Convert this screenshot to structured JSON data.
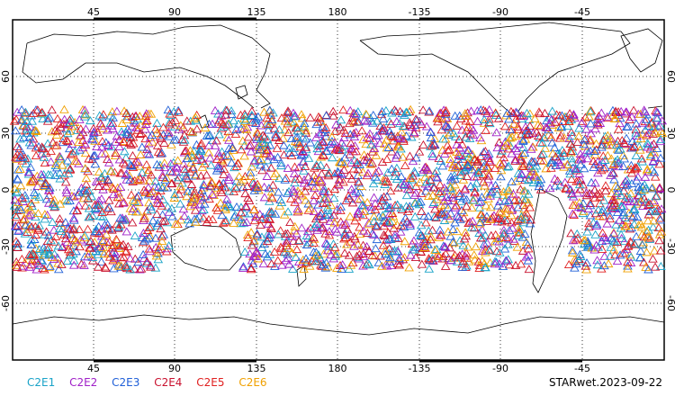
{
  "map": {
    "projection": "cylindrical equidistant, centered on 180°",
    "lon_ticks": [
      "45",
      "90",
      "135",
      "180",
      "-135",
      "-90",
      "-45"
    ],
    "lat_ticks": [
      "60",
      "30",
      "0",
      "-30",
      "-60"
    ],
    "marker": "open triangle",
    "coverage": "ocean observations between roughly 40N and 45S"
  },
  "legend": [
    {
      "label": "C2E1",
      "color": "#1aa3c8"
    },
    {
      "label": "C2E2",
      "color": "#a020c8"
    },
    {
      "label": "C2E3",
      "color": "#2060d8"
    },
    {
      "label": "C2E4",
      "color": "#c8102e"
    },
    {
      "label": "C2E5",
      "color": "#e02020"
    },
    {
      "label": "C2E6",
      "color": "#f0a000"
    }
  ],
  "title": "STARwet.2023-09-22"
}
